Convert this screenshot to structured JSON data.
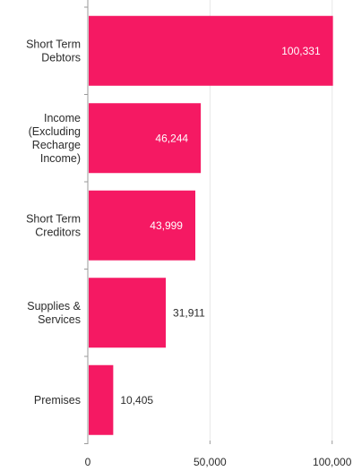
{
  "chart_data": {
    "type": "bar",
    "orientation": "horizontal",
    "categories": [
      [
        "Short Term",
        "Debtors"
      ],
      [
        "Income",
        "(Excluding",
        "Recharge",
        "Income)"
      ],
      [
        "Short Term",
        "Creditors"
      ],
      [
        "Supplies &",
        "Services"
      ],
      [
        "Premises"
      ]
    ],
    "values": [
      100331,
      46244,
      43999,
      31911,
      10405
    ],
    "value_labels": [
      "100,331",
      "46,244",
      "43,999",
      "31,911",
      "10,405"
    ],
    "xlim": [
      0,
      110000
    ],
    "xticks": [
      0,
      50000,
      100000
    ],
    "xtick_labels": [
      "0",
      "50,000",
      "100,000"
    ],
    "grid": true,
    "legend": "none",
    "title": "",
    "xlabel": "",
    "ylabel": ""
  },
  "colors": {
    "bar": "#f51963",
    "axis": "#9a9a9a",
    "grid": "#e6e6e6",
    "text": "#2b2b2b",
    "label_inside": "#ffffff",
    "label_outside": "#2b2b2b"
  }
}
